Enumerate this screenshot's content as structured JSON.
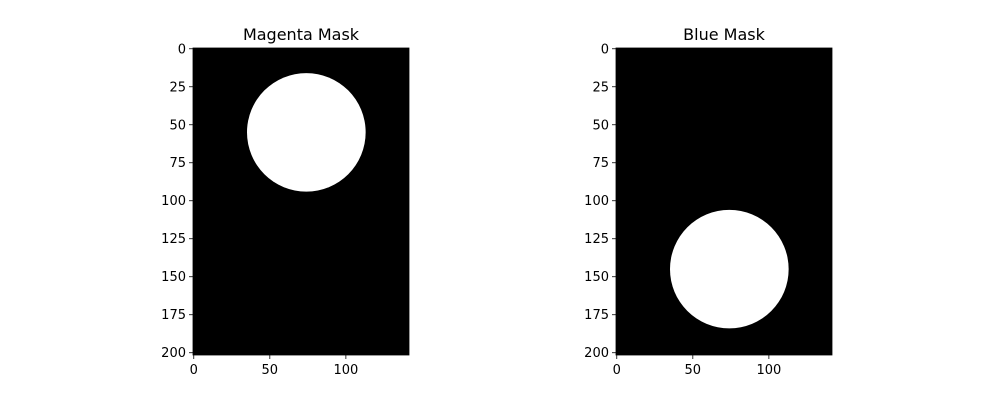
{
  "chart_data": [
    {
      "type": "heatmap",
      "title": "Magenta Mask",
      "colormap": "gray",
      "image_size": {
        "width": 142,
        "height": 202
      },
      "circle": {
        "center_x": 74,
        "center_y": 55,
        "radius": 39
      },
      "xlim": [
        -0.5,
        141.5
      ],
      "ylim": [
        201.5,
        -0.5
      ],
      "xticks": [
        0,
        50,
        100
      ],
      "yticks": [
        0,
        25,
        50,
        75,
        100,
        125,
        150,
        175,
        200
      ],
      "colors": {
        "background": "#000000",
        "foreground": "#ffffff"
      }
    },
    {
      "type": "heatmap",
      "title": "Blue Mask",
      "colormap": "gray",
      "image_size": {
        "width": 142,
        "height": 202
      },
      "circle": {
        "center_x": 74,
        "center_y": 145,
        "radius": 39
      },
      "xlim": [
        -0.5,
        141.5
      ],
      "ylim": [
        201.5,
        -0.5
      ],
      "xticks": [
        0,
        50,
        100
      ],
      "yticks": [
        0,
        25,
        50,
        75,
        100,
        125,
        150,
        175,
        200
      ],
      "colors": {
        "background": "#000000",
        "foreground": "#ffffff"
      }
    }
  ]
}
